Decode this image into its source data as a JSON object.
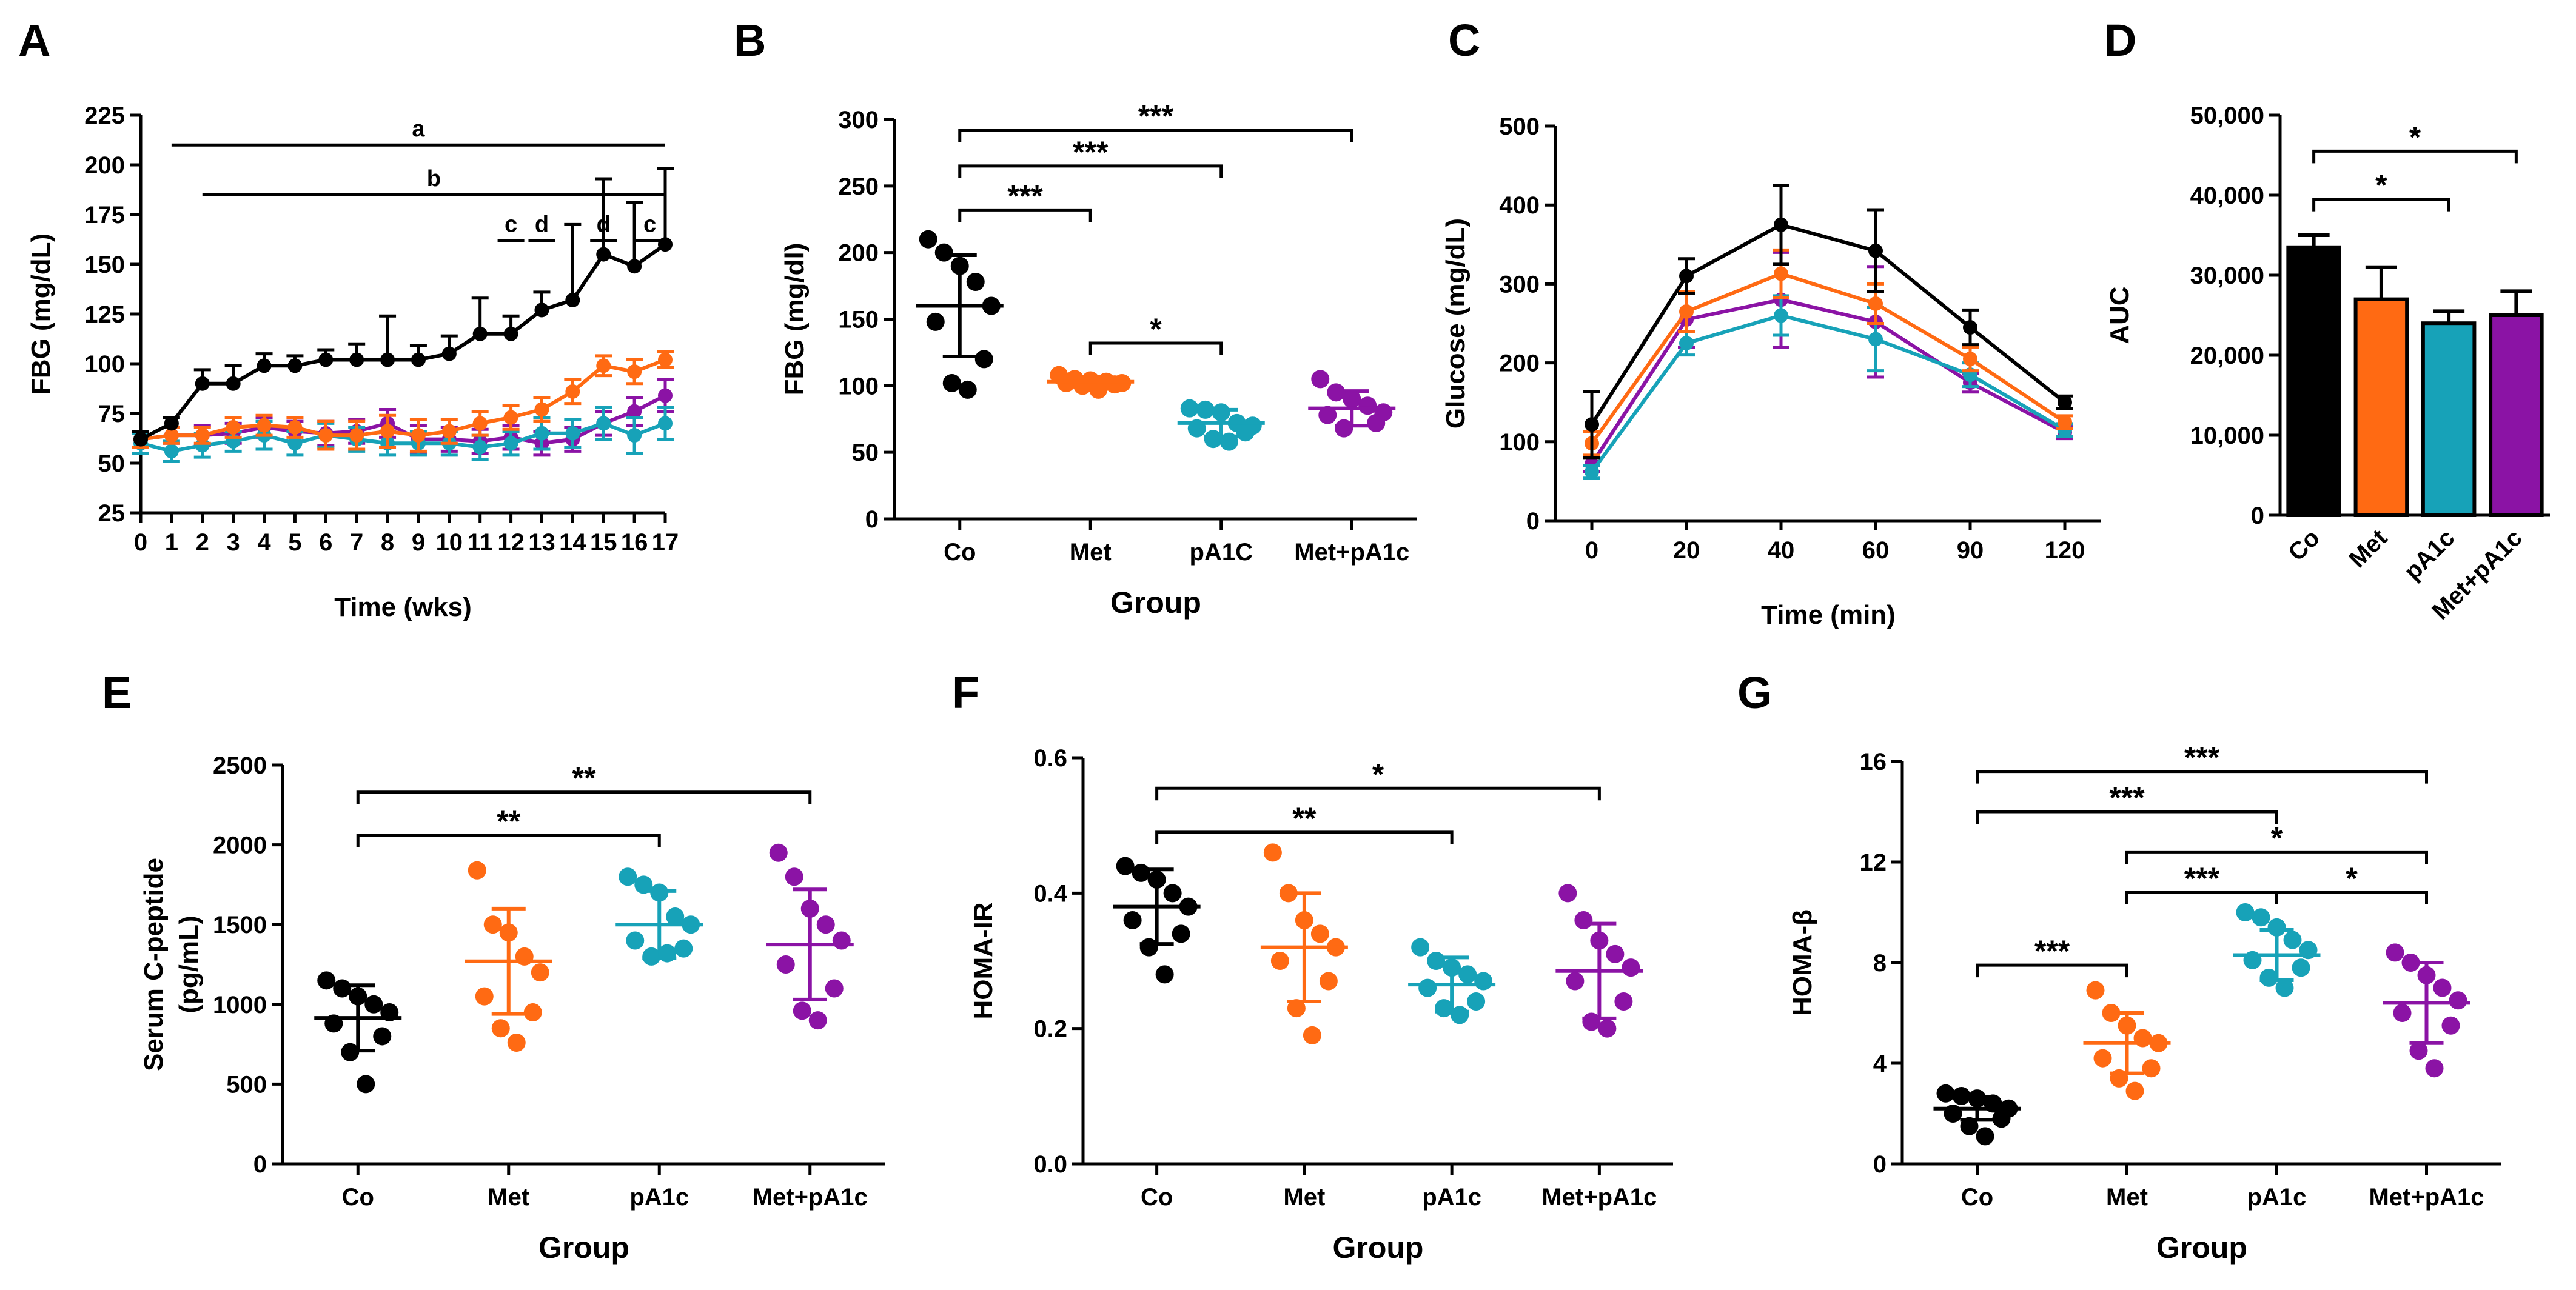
{
  "colors": {
    "Co": "#000000",
    "Met": "#ff6a13",
    "pA1c": "#17a2b8",
    "Met+pA1c": "#8b13a5"
  },
  "chart_data": [
    {
      "id": "A",
      "panel_letter": "A",
      "type": "line",
      "xlabel": "Time (wks)",
      "ylabel": "FBG (mg/dL)",
      "ylim": [
        25,
        225
      ],
      "yticks": [
        "25",
        "50",
        "75",
        "100",
        "125",
        "150",
        "175",
        "200",
        "225"
      ],
      "x": [
        "0",
        "1",
        "2",
        "3",
        "4",
        "5",
        "6",
        "7",
        "8",
        "9",
        "10",
        "11",
        "12",
        "13",
        "14",
        "15",
        "16",
        "17"
      ],
      "series": [
        {
          "name": "Co",
          "color": "#000000",
          "values": [
            62,
            70,
            90,
            90,
            99,
            99,
            102,
            102,
            102,
            102,
            105,
            115,
            115,
            127,
            132,
            155,
            149,
            160
          ],
          "err": [
            4,
            3,
            7,
            9,
            6,
            5,
            5,
            8,
            22,
            7,
            9,
            18,
            9,
            9,
            38,
            38,
            32,
            38
          ]
        },
        {
          "name": "Met",
          "color": "#ff6a13",
          "values": [
            62,
            64,
            64,
            68,
            69,
            68,
            64,
            64,
            66,
            64,
            66,
            70,
            73,
            77,
            86,
            99,
            96,
            102
          ],
          "err": [
            4,
            4,
            4,
            5,
            5,
            5,
            7,
            7,
            8,
            8,
            6,
            6,
            6,
            6,
            6,
            5,
            6,
            4
          ]
        },
        {
          "name": "pA1c",
          "color": "#17a2b8",
          "values": [
            60,
            56,
            59,
            61,
            64,
            60,
            64,
            62,
            60,
            60,
            60,
            58,
            60,
            65,
            65,
            70,
            64,
            70
          ],
          "err": [
            5,
            5,
            6,
            5,
            7,
            6,
            6,
            6,
            6,
            6,
            6,
            6,
            6,
            8,
            7,
            8,
            9,
            8
          ]
        },
        {
          "name": "Met+pA1c",
          "color": "#8b13a5",
          "values": [
            62,
            64,
            64,
            65,
            68,
            66,
            65,
            66,
            70,
            62,
            62,
            61,
            63,
            60,
            62,
            70,
            76,
            84
          ],
          "err": [
            4,
            4,
            5,
            5,
            5,
            5,
            6,
            6,
            7,
            7,
            6,
            6,
            6,
            6,
            6,
            6,
            7,
            8
          ]
        }
      ],
      "brackets": [
        {
          "label": "a",
          "from": "1",
          "to": "17",
          "y": 210
        },
        {
          "label": "b",
          "from": "2",
          "to": "17",
          "y": 185
        },
        {
          "label": "c",
          "from": "12",
          "to": "12",
          "y": 162
        },
        {
          "label": "d",
          "from": "13",
          "to": "13",
          "y": 162
        },
        {
          "label": "d",
          "from": "15",
          "to": "15",
          "y": 162
        },
        {
          "label": "c",
          "from": "16",
          "to": "17",
          "y": 162
        }
      ]
    },
    {
      "id": "B",
      "panel_letter": "B",
      "type": "scatter",
      "xlabel": "Group",
      "ylabel": "FBG (mg/dl)",
      "ylim": [
        0,
        300
      ],
      "yticks": [
        "0",
        "50",
        "100",
        "150",
        "200",
        "250",
        "300"
      ],
      "categories": [
        "Co",
        "Met",
        "pA1C",
        "Met+pA1c"
      ],
      "series": [
        {
          "name": "Co",
          "color": "#000000",
          "mean": 160,
          "sd": 38,
          "values": [
            210,
            200,
            190,
            178,
            160,
            148,
            120,
            102,
            97
          ]
        },
        {
          "name": "Met",
          "color": "#ff6a13",
          "mean": 103,
          "sd": 4,
          "values": [
            108,
            105,
            104,
            103,
            102,
            102,
            101,
            100,
            97
          ]
        },
        {
          "name": "pA1C",
          "color": "#17a2b8",
          "mean": 72,
          "sd": 10,
          "values": [
            83,
            82,
            80,
            72,
            70,
            68,
            65,
            60,
            58
          ]
        },
        {
          "name": "Met+pA1c",
          "color": "#8b13a5",
          "mean": 83,
          "sd": 13,
          "values": [
            105,
            95,
            90,
            85,
            80,
            78,
            72,
            68
          ]
        }
      ],
      "brackets": [
        {
          "from": 0,
          "to": 1,
          "y": 232,
          "label": "***"
        },
        {
          "from": 0,
          "to": 2,
          "y": 265,
          "label": "***"
        },
        {
          "from": 0,
          "to": 3,
          "y": 292,
          "label": "***"
        },
        {
          "from": 1,
          "to": 2,
          "y": 132,
          "label": "*"
        }
      ]
    },
    {
      "id": "C",
      "panel_letter": "C",
      "type": "line",
      "xlabel": "Time (min)",
      "ylabel": "Glucose  (mg/dL)",
      "ylim": [
        0,
        500
      ],
      "yticks": [
        "0",
        "100",
        "200",
        "300",
        "400",
        "500"
      ],
      "x": [
        "0",
        "20",
        "40",
        "60",
        "90",
        "120"
      ],
      "series": [
        {
          "name": "Co",
          "color": "#000000",
          "values": [
            122,
            310,
            375,
            342,
            245,
            150
          ],
          "err": [
            42,
            22,
            50,
            52,
            22,
            8
          ]
        },
        {
          "name": "Met",
          "color": "#ff6a13",
          "values": [
            98,
            265,
            313,
            275,
            205,
            125
          ],
          "err": [
            15,
            25,
            30,
            25,
            15,
            8
          ]
        },
        {
          "name": "pA1c",
          "color": "#17a2b8",
          "values": [
            62,
            225,
            260,
            230,
            185,
            115
          ],
          "err": [
            8,
            15,
            25,
            40,
            15,
            8
          ]
        },
        {
          "name": "Met+pA1c",
          "color": "#8b13a5",
          "values": [
            72,
            255,
            280,
            252,
            175,
            112
          ],
          "err": [
            10,
            35,
            60,
            70,
            12,
            8
          ]
        }
      ]
    },
    {
      "id": "D",
      "panel_letter": "D",
      "type": "bar",
      "xlabel": "",
      "ylabel": "AUC",
      "ylim": [
        0,
        50000
      ],
      "yticks": [
        "0",
        "10,000",
        "20,000",
        "30,000",
        "40,000",
        "50,000"
      ],
      "categories": [
        "Co",
        "Met",
        "pA1c",
        "Met+pA1c"
      ],
      "values": [
        33500,
        27000,
        24000,
        25000
      ],
      "err": [
        1500,
        4000,
        1500,
        3000
      ],
      "colors": [
        "#000000",
        "#ff6a13",
        "#17a2b8",
        "#8b13a5"
      ],
      "brackets": [
        {
          "from": 0,
          "to": 2,
          "y": 39500,
          "label": "*"
        },
        {
          "from": 0,
          "to": 3,
          "y": 45500,
          "label": "*"
        }
      ]
    },
    {
      "id": "E",
      "panel_letter": "E",
      "type": "scatter",
      "xlabel": "Group",
      "ylabel": "Serum C-peptide",
      "ylabel2": "(pg/mL)",
      "ylim": [
        0,
        2500
      ],
      "yticks": [
        "0",
        "500",
        "1000",
        "1500",
        "2000",
        "2500"
      ],
      "categories": [
        "Co",
        "Met",
        "pA1c",
        "Met+pA1c"
      ],
      "series": [
        {
          "name": "Co",
          "color": "#000000",
          "mean": 915,
          "sd": 205,
          "values": [
            1150,
            1100,
            1050,
            1000,
            950,
            880,
            800,
            700,
            500
          ]
        },
        {
          "name": "Met",
          "color": "#ff6a13",
          "mean": 1270,
          "sd": 330,
          "values": [
            1840,
            1500,
            1450,
            1300,
            1200,
            1050,
            950,
            850,
            760
          ]
        },
        {
          "name": "pA1c",
          "color": "#17a2b8",
          "mean": 1500,
          "sd": 210,
          "values": [
            1800,
            1750,
            1700,
            1550,
            1500,
            1400,
            1350,
            1300,
            1320
          ]
        },
        {
          "name": "Met+pA1c",
          "color": "#8b13a5",
          "mean": 1375,
          "sd": 345,
          "values": [
            1950,
            1800,
            1600,
            1500,
            1400,
            1250,
            1100,
            960,
            900
          ]
        }
      ],
      "brackets": [
        {
          "from": 0,
          "to": 2,
          "y": 2060,
          "label": "**"
        },
        {
          "from": 0,
          "to": 3,
          "y": 2330,
          "label": "**"
        }
      ]
    },
    {
      "id": "F",
      "panel_letter": "F",
      "type": "scatter",
      "xlabel": "Group",
      "ylabel": "HOMA-IR",
      "ylim": [
        0,
        0.6
      ],
      "yticks": [
        "0.0",
        "0.2",
        "0.4",
        "0.6"
      ],
      "categories": [
        "Co",
        "Met",
        "pA1c",
        "Met+pA1c"
      ],
      "series": [
        {
          "name": "Co",
          "color": "#000000",
          "mean": 0.38,
          "sd": 0.055,
          "values": [
            0.44,
            0.43,
            0.42,
            0.4,
            0.38,
            0.36,
            0.34,
            0.32,
            0.28
          ]
        },
        {
          "name": "Met",
          "color": "#ff6a13",
          "mean": 0.32,
          "sd": 0.08,
          "values": [
            0.46,
            0.4,
            0.36,
            0.34,
            0.32,
            0.3,
            0.27,
            0.23,
            0.19
          ]
        },
        {
          "name": "pA1c",
          "color": "#17a2b8",
          "mean": 0.265,
          "sd": 0.04,
          "values": [
            0.32,
            0.3,
            0.29,
            0.28,
            0.27,
            0.26,
            0.24,
            0.23,
            0.22
          ]
        },
        {
          "name": "Met+pA1c",
          "color": "#8b13a5",
          "mean": 0.285,
          "sd": 0.07,
          "values": [
            0.4,
            0.36,
            0.33,
            0.31,
            0.29,
            0.27,
            0.24,
            0.21,
            0.2
          ]
        }
      ],
      "brackets": [
        {
          "from": 0,
          "to": 2,
          "y": 0.49,
          "label": "**"
        },
        {
          "from": 0,
          "to": 3,
          "y": 0.555,
          "label": "*"
        }
      ]
    },
    {
      "id": "G",
      "panel_letter": "G",
      "type": "scatter",
      "xlabel": "Group",
      "ylabel": "HOMA-β",
      "ylim": [
        0,
        16
      ],
      "yticks": [
        "0",
        "4",
        "8",
        "12",
        "16"
      ],
      "categories": [
        "Co",
        "Met",
        "pA1c",
        "Met+pA1c"
      ],
      "series": [
        {
          "name": "Co",
          "color": "#000000",
          "mean": 2.2,
          "sd": 0.45,
          "values": [
            2.8,
            2.7,
            2.6,
            2.4,
            2.2,
            2.0,
            1.8,
            1.5,
            1.1
          ]
        },
        {
          "name": "Met",
          "color": "#ff6a13",
          "mean": 4.8,
          "sd": 1.2,
          "values": [
            6.9,
            6.0,
            5.5,
            5.0,
            4.8,
            4.2,
            3.8,
            3.4,
            2.9
          ]
        },
        {
          "name": "pA1c",
          "color": "#17a2b8",
          "mean": 8.3,
          "sd": 1.0,
          "values": [
            10.0,
            9.8,
            9.4,
            8.9,
            8.5,
            8.1,
            7.8,
            7.4,
            7.0
          ]
        },
        {
          "name": "Met+pA1c",
          "color": "#8b13a5",
          "mean": 6.4,
          "sd": 1.6,
          "values": [
            8.4,
            8.0,
            7.5,
            7.0,
            6.5,
            6.0,
            5.5,
            4.5,
            3.8
          ]
        }
      ],
      "brackets": [
        {
          "from": 0,
          "to": 1,
          "y": 7.9,
          "label": "***"
        },
        {
          "from": 1,
          "to": 2,
          "y": 10.8,
          "label": "***"
        },
        {
          "from": 2,
          "to": 3,
          "y": 10.8,
          "label": "*"
        },
        {
          "from": 1,
          "to": 3,
          "y": 12.4,
          "label": "*"
        },
        {
          "from": 0,
          "to": 2,
          "y": 14.0,
          "label": "***"
        },
        {
          "from": 0,
          "to": 3,
          "y": 15.6,
          "label": "***"
        }
      ]
    }
  ]
}
